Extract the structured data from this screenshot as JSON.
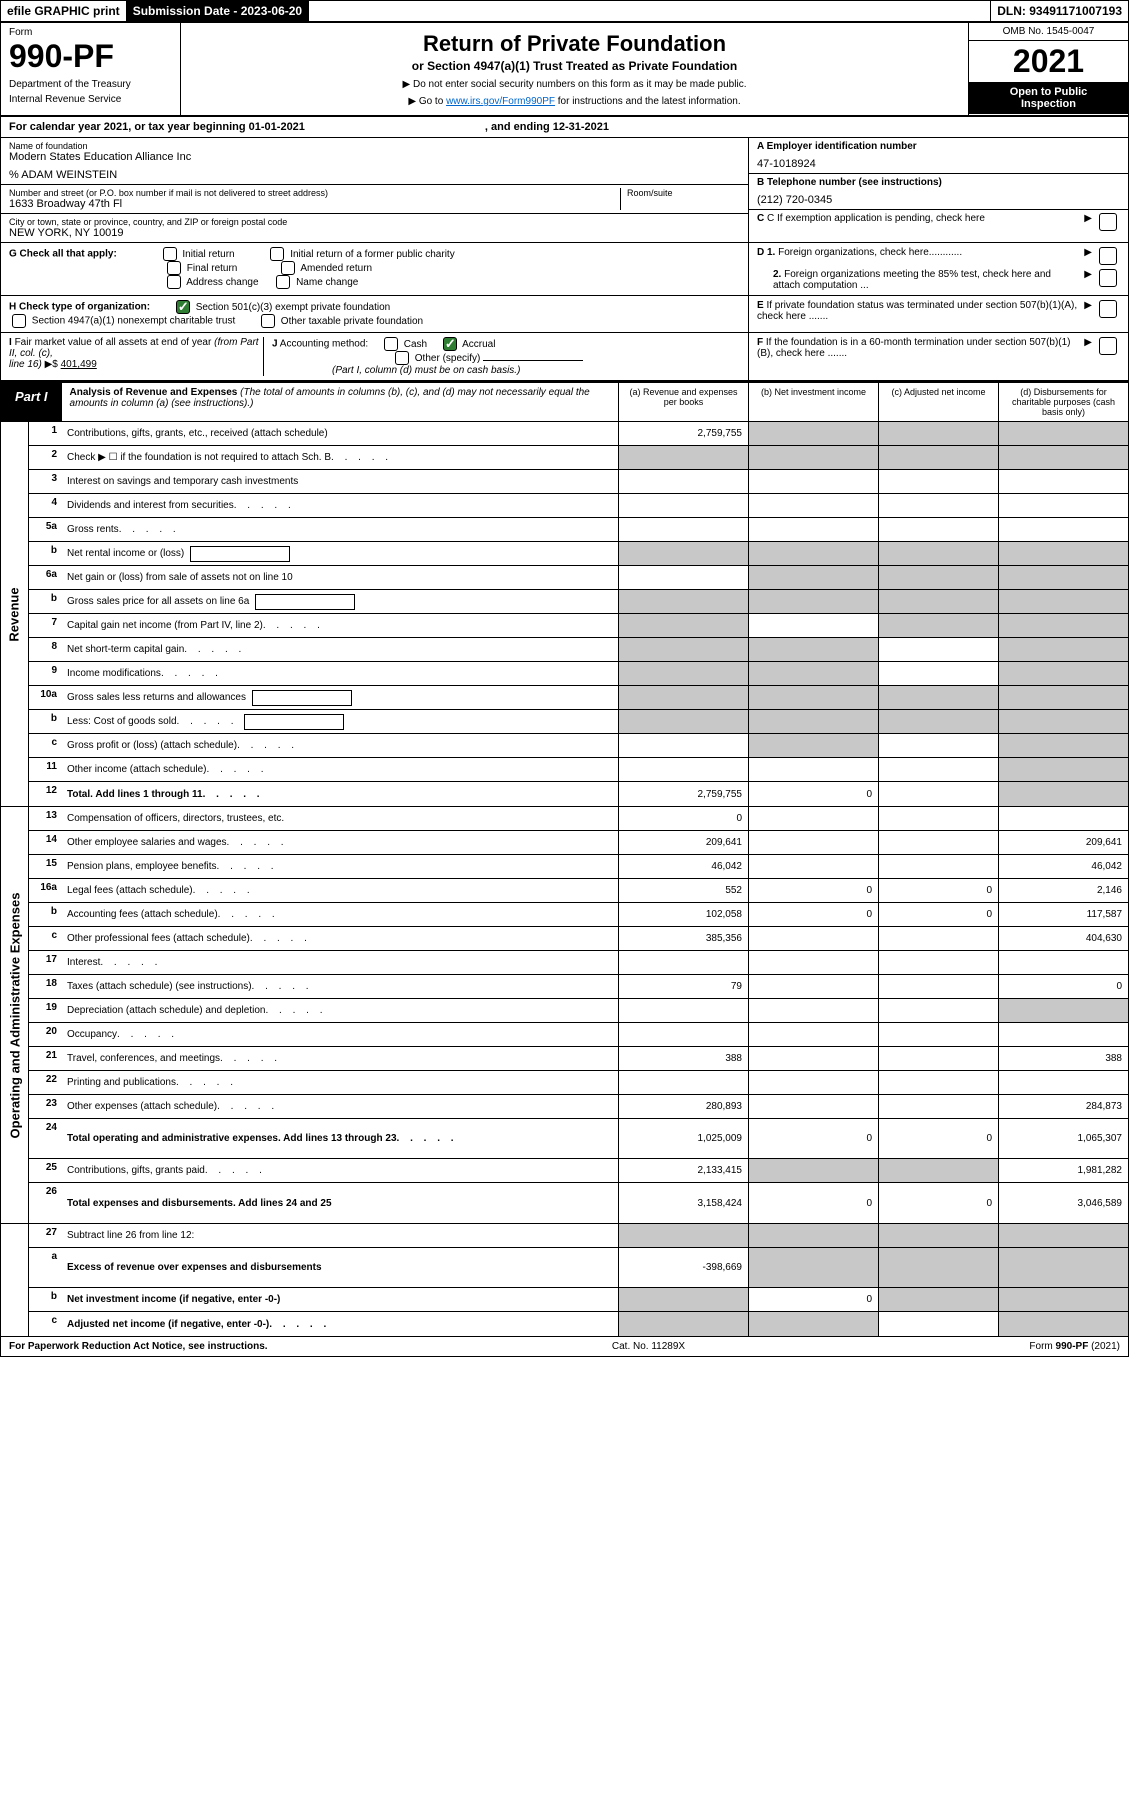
{
  "topbar": {
    "efile": "efile GRAPHIC print",
    "submission_label": "Submission Date - 2023-06-20",
    "dln": "DLN: 93491171007193"
  },
  "header": {
    "form_label": "Form",
    "form_number": "990-PF",
    "dept1": "Department of the Treasury",
    "dept2": "Internal Revenue Service",
    "title": "Return of Private Foundation",
    "subtitle": "or Section 4947(a)(1) Trust Treated as Private Foundation",
    "note1": "▶ Do not enter social security numbers on this form as it may be made public.",
    "note2_pre": "▶ Go to ",
    "note2_link": "www.irs.gov/Form990PF",
    "note2_post": " for instructions and the latest information.",
    "omb": "OMB No. 1545-0047",
    "year": "2021",
    "inspection1": "Open to Public",
    "inspection2": "Inspection"
  },
  "cal_year": {
    "pre": "For calendar year 2021, or tax year beginning 01-01-2021",
    "mid": ", and ending 12-31-2021"
  },
  "info": {
    "name_label": "Name of foundation",
    "name": "Modern States Education Alliance Inc",
    "care_of": "% ADAM WEINSTEIN",
    "addr_label": "Number and street (or P.O. box number if mail is not delivered to street address)",
    "addr": "1633 Broadway 47th Fl",
    "room_label": "Room/suite",
    "city_label": "City or town, state or province, country, and ZIP or foreign postal code",
    "city": "NEW YORK, NY  10019",
    "a_label": "A Employer identification number",
    "a_value": "47-1018924",
    "b_label": "B Telephone number (see instructions)",
    "b_value": "(212) 720-0345",
    "c_label": "C If exemption application is pending, check here",
    "d1_label": "D 1. Foreign organizations, check here............",
    "d2_label": "2. Foreign organizations meeting the 85% test, check here and attach computation ...",
    "e_label": "E  If private foundation status was terminated under section 507(b)(1)(A), check here .......",
    "f_label": "F  If the foundation is in a 60-month termination under section 507(b)(1)(B), check here .......",
    "g_label": "G Check all that apply:",
    "g_initial": "Initial return",
    "g_initial_former": "Initial return of a former public charity",
    "g_final": "Final return",
    "g_amended": "Amended return",
    "g_address": "Address change",
    "g_name": "Name change",
    "h_label": "H Check type of organization:",
    "h_501c3": "Section 501(c)(3) exempt private foundation",
    "h_4947": "Section 4947(a)(1) nonexempt charitable trust",
    "h_other": "Other taxable private foundation",
    "i_label": "I Fair market value of all assets at end of year (from Part II, col. (c),",
    "i_line": "line 16) ▶$ ",
    "i_value": "401,499",
    "j_label": "J Accounting method:",
    "j_cash": "Cash",
    "j_accrual": "Accrual",
    "j_other": "Other (specify)",
    "j_note": "(Part I, column (d) must be on cash basis.)"
  },
  "part1": {
    "label": "Part I",
    "title": "Analysis of Revenue and Expenses",
    "title_note": " (The total of amounts in columns (b), (c), and (d) may not necessarily equal the amounts in column (a) (see instructions).)",
    "col_a": "(a)   Revenue and expenses per books",
    "col_b": "(b)  Net investment income",
    "col_c": "(c)  Adjusted net income",
    "col_d": "(d)  Disbursements for charitable purposes (cash basis only)"
  },
  "sections": {
    "revenue": "Revenue",
    "expenses": "Operating and Administrative Expenses"
  },
  "rows": [
    {
      "n": "1",
      "d": "Contributions, gifts, grants, etc., received (attach schedule)",
      "a": "2,759,755",
      "grey_bcd": true
    },
    {
      "n": "2",
      "d": "Check ▶ ☐ if the foundation is not required to attach Sch. B",
      "dots": true,
      "grey_all": true
    },
    {
      "n": "3",
      "d": "Interest on savings and temporary cash investments"
    },
    {
      "n": "4",
      "d": "Dividends and interest from securities",
      "dots": true
    },
    {
      "n": "5a",
      "d": "Gross rents",
      "dots": true
    },
    {
      "n": "b",
      "d": "Net rental income or (loss)",
      "inline": true,
      "grey_all": true
    },
    {
      "n": "6a",
      "d": "Net gain or (loss) from sale of assets not on line 10",
      "grey_bcd": true
    },
    {
      "n": "b",
      "d": "Gross sales price for all assets on line 6a",
      "inline": true,
      "grey_all": true
    },
    {
      "n": "7",
      "d": "Capital gain net income (from Part IV, line 2)",
      "dots": true,
      "grey_a": true,
      "grey_cd": true
    },
    {
      "n": "8",
      "d": "Net short-term capital gain",
      "dots": true,
      "grey_ab": true,
      "grey_d": true
    },
    {
      "n": "9",
      "d": "Income modifications",
      "dots": true,
      "grey_ab": true,
      "grey_d": true
    },
    {
      "n": "10a",
      "d": "Gross sales less returns and allowances",
      "inline": true,
      "grey_all": true
    },
    {
      "n": "b",
      "d": "Less: Cost of goods sold",
      "dots": true,
      "inline": true,
      "grey_all": true
    },
    {
      "n": "c",
      "d": "Gross profit or (loss) (attach schedule)",
      "dots": true,
      "grey_b": true,
      "grey_d": true
    },
    {
      "n": "11",
      "d": "Other income (attach schedule)",
      "dots": true,
      "grey_d": true
    },
    {
      "n": "12",
      "d": "Total. Add lines 1 through 11",
      "dots": true,
      "bold": true,
      "a": "2,759,755",
      "b": "0",
      "grey_d": true
    }
  ],
  "exp_rows": [
    {
      "n": "13",
      "d": "Compensation of officers, directors, trustees, etc.",
      "a": "0"
    },
    {
      "n": "14",
      "d": "Other employee salaries and wages",
      "dots": true,
      "a": "209,641",
      "dd": "209,641"
    },
    {
      "n": "15",
      "d": "Pension plans, employee benefits",
      "dots": true,
      "a": "46,042",
      "dd": "46,042"
    },
    {
      "n": "16a",
      "d": "Legal fees (attach schedule)",
      "dots": true,
      "a": "552",
      "b": "0",
      "c": "0",
      "dd": "2,146"
    },
    {
      "n": "b",
      "d": "Accounting fees (attach schedule)",
      "dots": true,
      "a": "102,058",
      "b": "0",
      "c": "0",
      "dd": "117,587"
    },
    {
      "n": "c",
      "d": "Other professional fees (attach schedule)",
      "dots": true,
      "a": "385,356",
      "dd": "404,630"
    },
    {
      "n": "17",
      "d": "Interest",
      "dots": true
    },
    {
      "n": "18",
      "d": "Taxes (attach schedule) (see instructions)",
      "dots": true,
      "a": "79",
      "dd": "0"
    },
    {
      "n": "19",
      "d": "Depreciation (attach schedule) and depletion",
      "dots": true,
      "grey_d": true
    },
    {
      "n": "20",
      "d": "Occupancy",
      "dots": true
    },
    {
      "n": "21",
      "d": "Travel, conferences, and meetings",
      "dots": true,
      "a": "388",
      "dd": "388"
    },
    {
      "n": "22",
      "d": "Printing and publications",
      "dots": true
    },
    {
      "n": "23",
      "d": "Other expenses (attach schedule)",
      "dots": true,
      "a": "280,893",
      "dd": "284,873"
    },
    {
      "n": "24",
      "d": "Total operating and administrative expenses. Add lines 13 through 23",
      "dots": true,
      "bold": true,
      "a": "1,025,009",
      "b": "0",
      "c": "0",
      "dd": "1,065,307",
      "tall": true
    },
    {
      "n": "25",
      "d": "Contributions, gifts, grants paid",
      "dots": true,
      "a": "2,133,415",
      "grey_bc": true,
      "dd": "1,981,282"
    },
    {
      "n": "26",
      "d": "Total expenses and disbursements. Add lines 24 and 25",
      "bold": true,
      "a": "3,158,424",
      "b": "0",
      "c": "0",
      "dd": "3,046,589",
      "tall": true
    }
  ],
  "final_rows": [
    {
      "n": "27",
      "d": "Subtract line 26 from line 12:",
      "grey_all": true
    },
    {
      "n": "a",
      "d": "Excess of revenue over expenses and disbursements",
      "bold": true,
      "a": "-398,669",
      "grey_bcd": true,
      "tall": true
    },
    {
      "n": "b",
      "d": "Net investment income (if negative, enter -0-)",
      "bold": true,
      "grey_a": true,
      "b": "0",
      "grey_cd": true
    },
    {
      "n": "c",
      "d": "Adjusted net income (if negative, enter -0-)",
      "bold": true,
      "dots": true,
      "grey_ab": true,
      "grey_d": true
    }
  ],
  "footer": {
    "left": "For Paperwork Reduction Act Notice, see instructions.",
    "mid": "Cat. No. 11289X",
    "right": "Form 990-PF (2021)"
  }
}
